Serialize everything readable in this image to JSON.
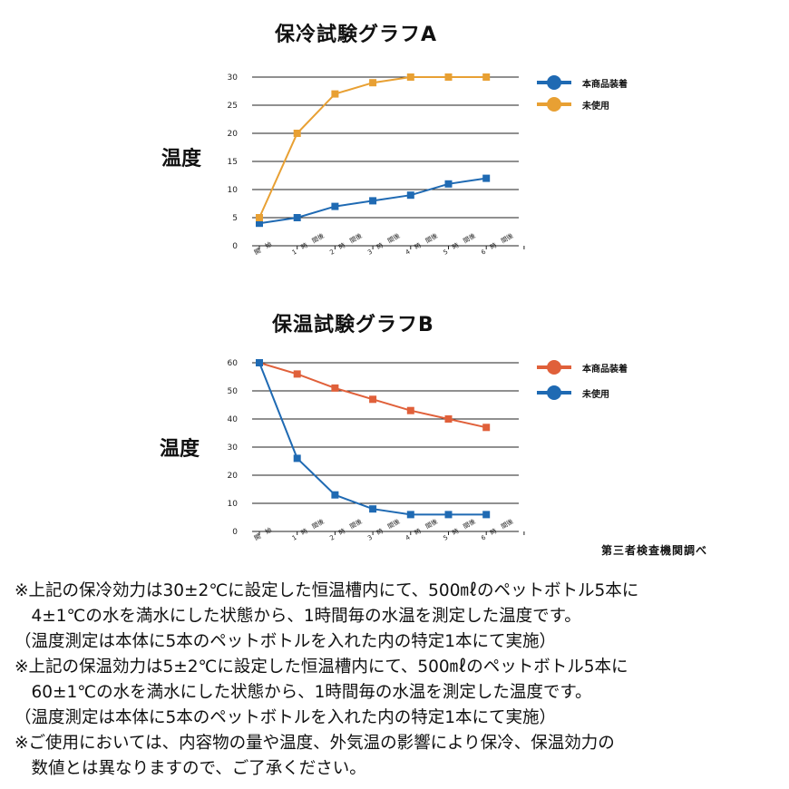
{
  "charts": [
    {
      "id": "a",
      "title": "保冷試験グラフA",
      "ylabel": "温度",
      "legend": [
        {
          "label": "本商品装着",
          "color": "#1f6ab3"
        },
        {
          "label": "未使用",
          "color": "#e8a033"
        }
      ]
    },
    {
      "id": "b",
      "title": "保温試験グラフB",
      "ylabel": "温度",
      "legend": [
        {
          "label": "本商品装着",
          "color": "#e0603a"
        },
        {
          "label": "未使用",
          "color": "#1f6ab3"
        }
      ]
    }
  ],
  "chart_data": [
    {
      "type": "line",
      "title": "保冷試験グラフA",
      "ylabel": "温度",
      "xlabel": "",
      "categories": [
        "開　始",
        "1　時　間後",
        "2　時　間後",
        "3　時　間後",
        "4　時　間後",
        "5　時　間後",
        "6　時　間後"
      ],
      "ylim": [
        0,
        30
      ],
      "yticks": [
        0,
        5,
        10,
        15,
        20,
        25,
        30
      ],
      "grid": true,
      "legend_position": "top-right",
      "series": [
        {
          "name": "本商品装着",
          "color": "#1f6ab3",
          "marker": "square",
          "values": [
            4,
            5,
            7,
            8,
            9,
            11,
            12
          ]
        },
        {
          "name": "未使用",
          "color": "#e8a033",
          "marker": "square",
          "values": [
            5,
            20,
            27,
            29,
            30,
            30,
            30
          ]
        }
      ]
    },
    {
      "type": "line",
      "title": "保温試験グラフB",
      "ylabel": "温度",
      "xlabel": "",
      "categories": [
        "開　始",
        "1　時　間後",
        "2　時　間後",
        "3　時　間後",
        "4　時　間後",
        "5　時　間後",
        "6　時　間後"
      ],
      "ylim": [
        0,
        60
      ],
      "yticks": [
        0,
        10,
        20,
        30,
        40,
        50,
        60
      ],
      "grid": true,
      "legend_position": "top-right",
      "series": [
        {
          "name": "本商品装着",
          "color": "#e0603a",
          "marker": "square",
          "values": [
            60,
            56,
            51,
            47,
            43,
            40,
            37
          ]
        },
        {
          "name": "未使用",
          "color": "#1f6ab3",
          "marker": "square",
          "values": [
            60,
            26,
            13,
            8,
            6,
            6,
            6
          ]
        }
      ]
    }
  ],
  "source": "第三者検査機関調べ",
  "notes": [
    "※上記の保冷効力は30±2℃に設定した恒温槽内にて、500㎖のペットボトル5本に",
    "　4±1℃の水を満水にした状態から、1時間毎の水温を測定した温度です。",
    "（温度測定は本体に5本のペットボトルを入れた内の特定1本にて実施）",
    "※上記の保温効力は5±2℃に設定した恒温槽内にて、500㎖のペットボトル5本に",
    "　60±1℃の水を満水にした状態から、1時間毎の水温を測定した温度です。",
    "（温度測定は本体に5本のペットボトルを入れた内の特定1本にて実施）",
    "※ご使用においては、内容物の量や温度、外気温の影響により保冷、保温効力の",
    "　数値とは異なりますので、ご了承ください。"
  ]
}
